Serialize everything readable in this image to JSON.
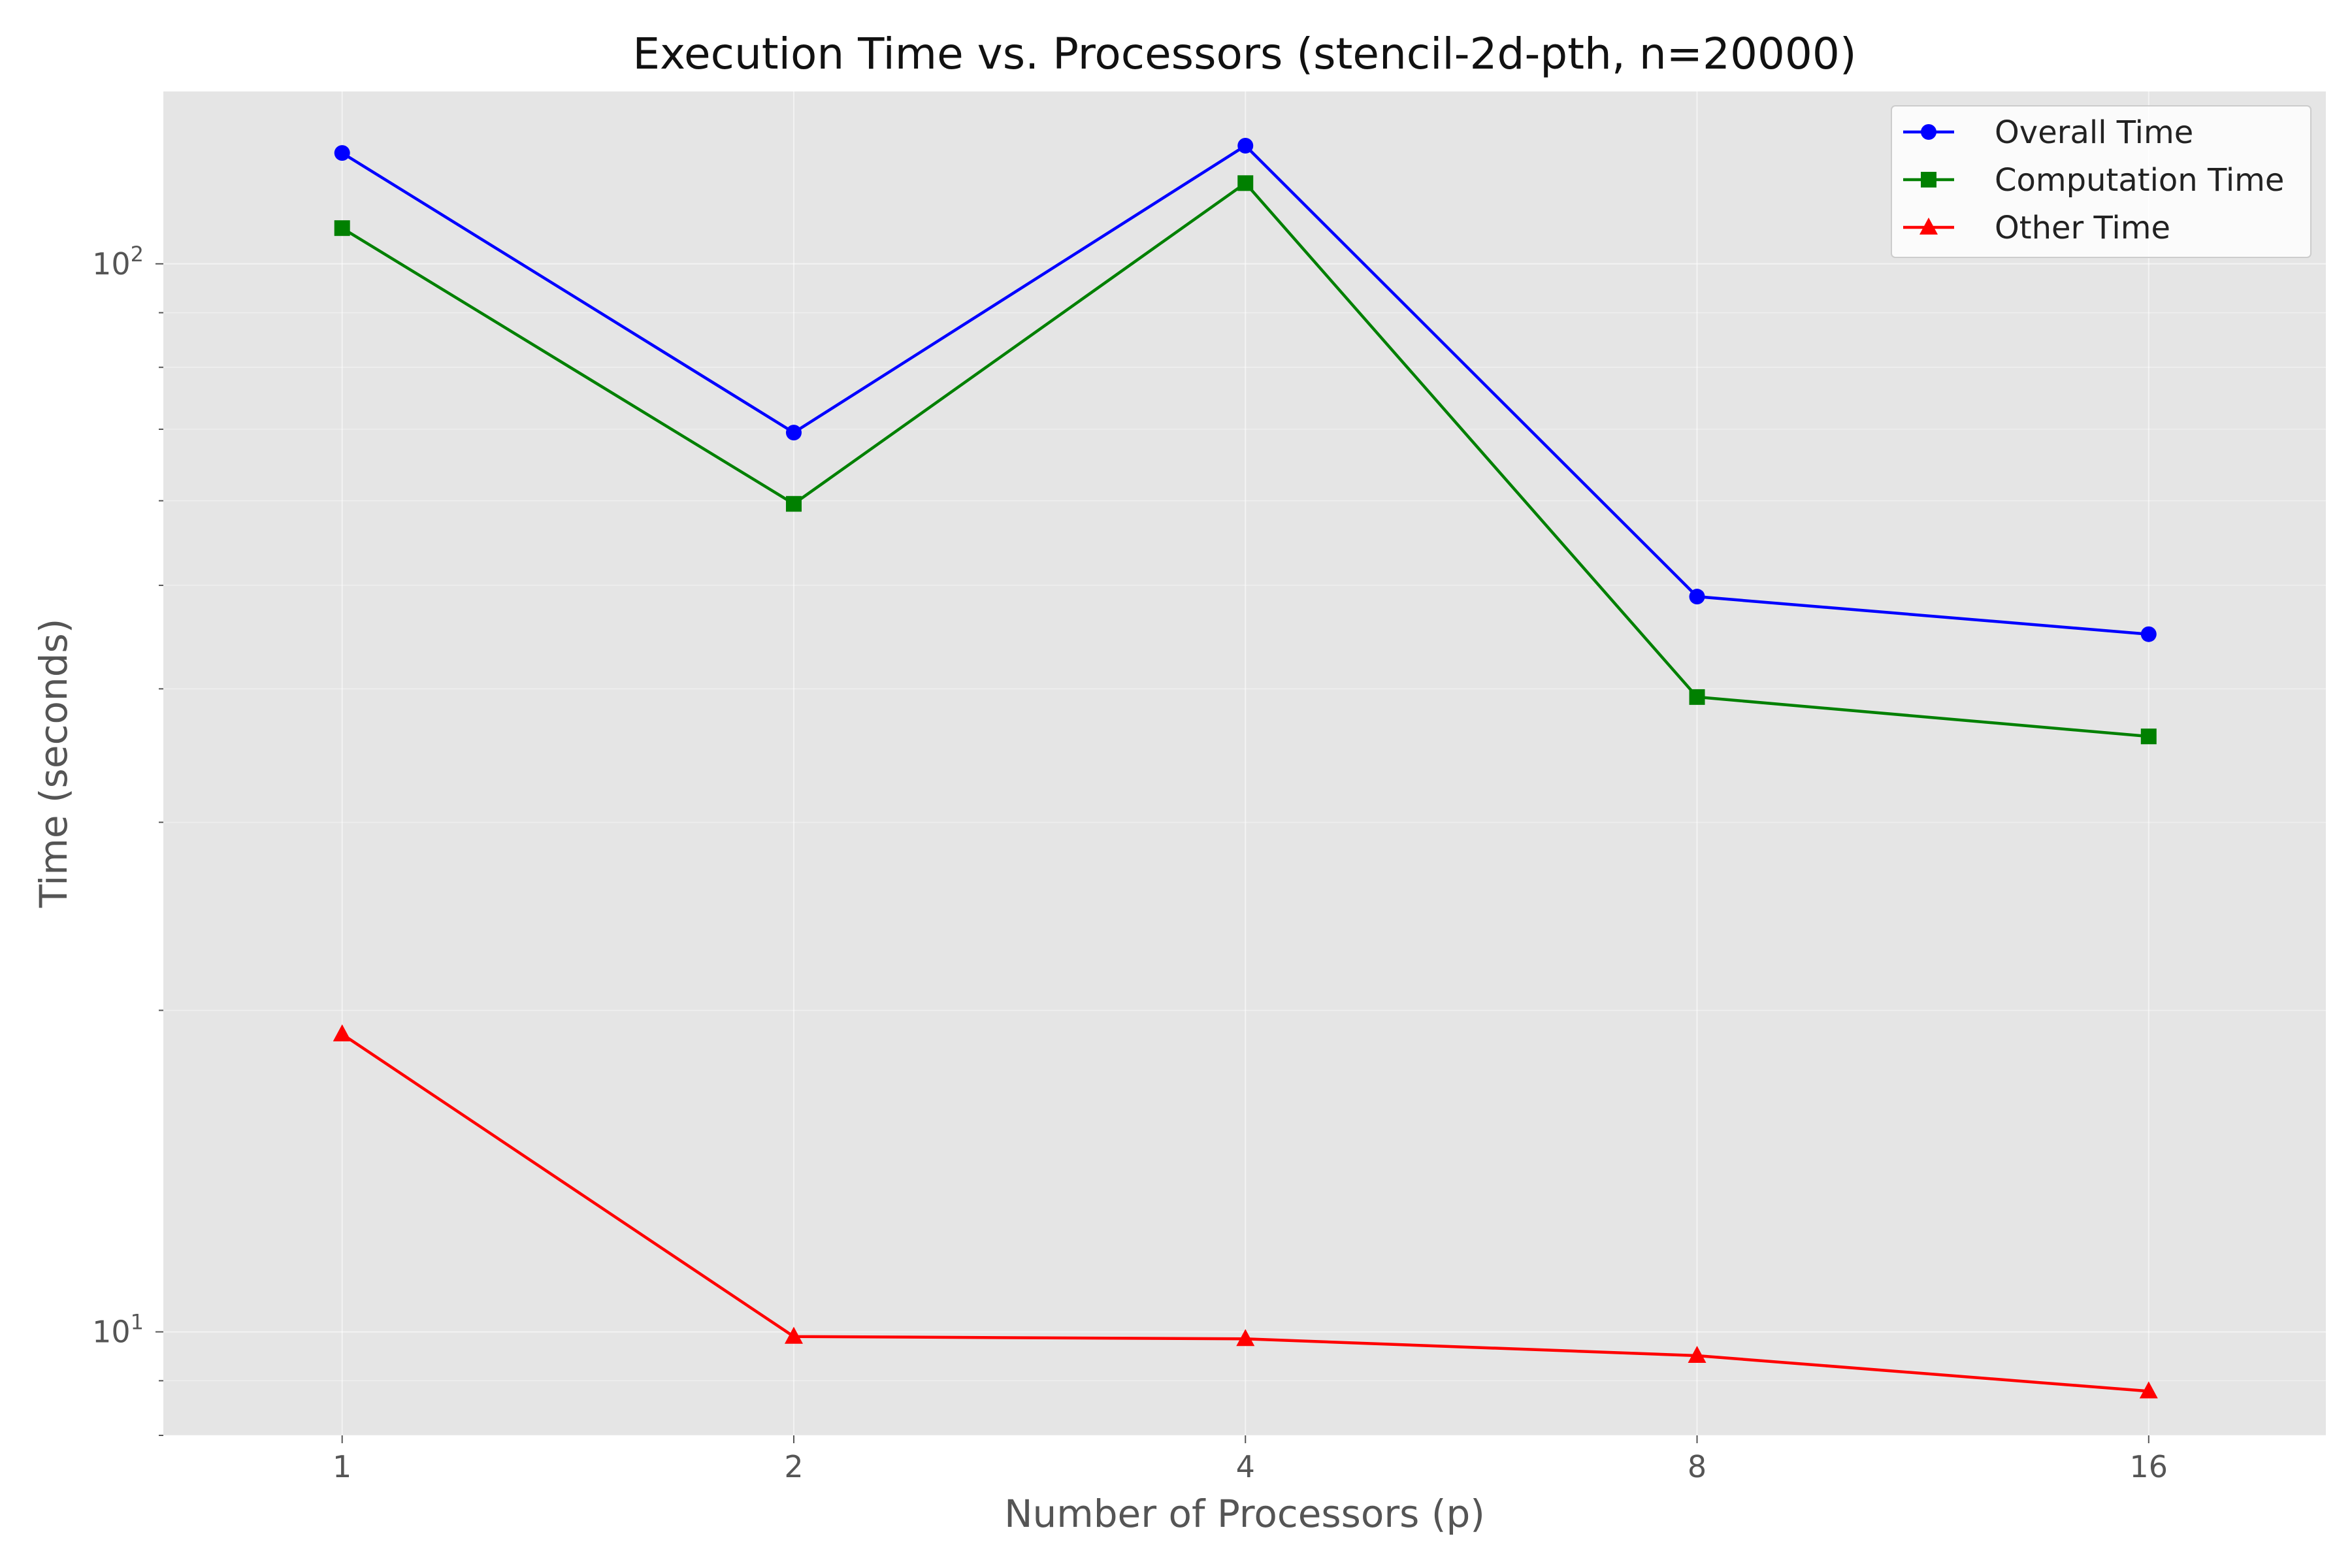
{
  "chart_data": {
    "type": "line",
    "title": "Execution Time vs. Processors (stencil-2d-pth, n=20000)",
    "xlabel": "Number of Processors (p)",
    "ylabel": "Time (seconds)",
    "x": [
      1,
      2,
      4,
      8,
      16
    ],
    "x_scale": "log2",
    "y_scale": "log10",
    "ylim": [
      8.0,
      145
    ],
    "xlim": [
      0.76,
      21
    ],
    "x_tick_labels": [
      "1",
      "2",
      "4",
      "8",
      "16"
    ],
    "y_tick_labels": [
      {
        "value": 10,
        "base": "10",
        "exp": "1"
      },
      {
        "value": 100,
        "base": "10",
        "exp": "2"
      }
    ],
    "grid": true,
    "legend_position": "top-right",
    "series": [
      {
        "name": "Overall Time",
        "color": "#0000ff",
        "marker": "circle",
        "values": [
          127,
          69.5,
          129,
          48.8,
          45.0
        ]
      },
      {
        "name": "Computation Time",
        "color": "#008000",
        "marker": "square",
        "values": [
          108,
          59.6,
          119,
          39.3,
          36.1
        ]
      },
      {
        "name": "Other Time",
        "color": "#ff0000",
        "marker": "triangle",
        "values": [
          19.0,
          9.9,
          9.85,
          9.5,
          8.8
        ]
      }
    ]
  }
}
